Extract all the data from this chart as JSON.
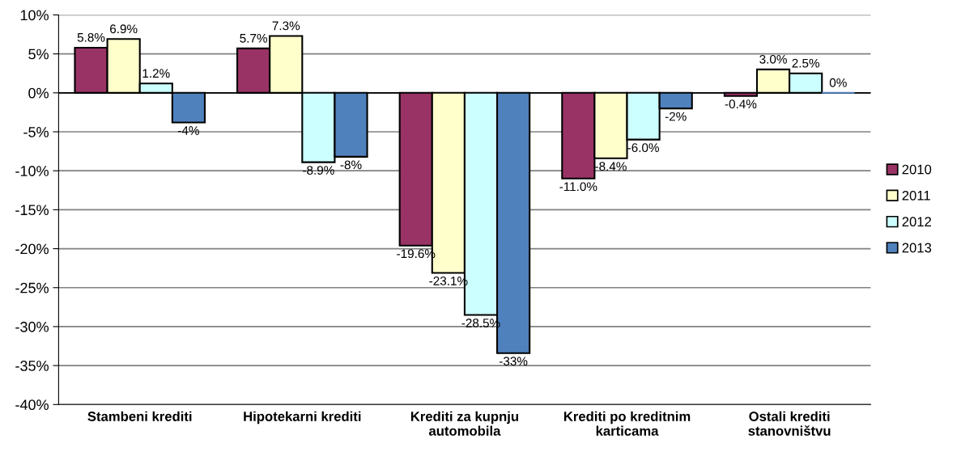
{
  "chart_data": {
    "type": "bar",
    "categories": [
      "Stambeni krediti",
      "Hipotekarni krediti",
      "Krediti za kupnju\nautomobila",
      "Krediti po kreditnim\nkarticama",
      "Ostali krediti\nstanovništvu"
    ],
    "series": [
      {
        "name": "2010",
        "color": "#993366",
        "values": [
          5.8,
          5.7,
          -19.6,
          -11.0,
          -0.4
        ],
        "value_labels": [
          "5.8%",
          "5.7%",
          "-19.6%",
          "-11.0%",
          "-0.4%"
        ]
      },
      {
        "name": "2011",
        "color": "#ffffcc",
        "values": [
          6.9,
          7.3,
          -23.1,
          -8.4,
          3.0
        ],
        "value_labels": [
          "6.9%",
          "7.3%",
          "-23.1%",
          "-8.4%",
          "3.0%"
        ]
      },
      {
        "name": "2012",
        "color": "#ccffff",
        "values": [
          1.2,
          -8.9,
          -28.5,
          -6.0,
          2.5
        ],
        "value_labels": [
          "1.2%",
          "-8.9%",
          "-28.5%",
          "-6.0%",
          "2.5%"
        ]
      },
      {
        "name": "2013",
        "color": "#4f81bd",
        "values": [
          -3.8,
          -8.2,
          -33.4,
          -2.0,
          0
        ],
        "value_labels": [
          "-4%",
          "-8%",
          "-33%",
          "-2%",
          "0%"
        ]
      }
    ],
    "ylim": [
      -40,
      10
    ],
    "yticks": [
      {
        "value": -40,
        "label": "-40%"
      },
      {
        "value": -35,
        "label": "-35%"
      },
      {
        "value": -30,
        "label": "-30%"
      },
      {
        "value": -25,
        "label": "-25%"
      },
      {
        "value": -20,
        "label": "-20%"
      },
      {
        "value": -15,
        "label": "-15%"
      },
      {
        "value": -10,
        "label": "-10%"
      },
      {
        "value": -5,
        "label": "-5%"
      },
      {
        "value": 0,
        "label": "0%"
      },
      {
        "value": 5,
        "label": "5%"
      },
      {
        "value": 10,
        "label": "10%"
      }
    ],
    "grid": "y",
    "legend": "right"
  }
}
